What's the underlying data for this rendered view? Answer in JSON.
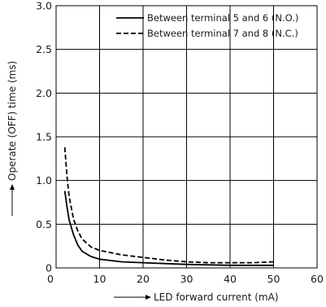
{
  "chart_data": {
    "type": "line",
    "xlabel": "LED forward current (mA)",
    "ylabel": "Operate (OFF) time (ms)",
    "xlim": [
      0,
      60
    ],
    "ylim": [
      0,
      3.0
    ],
    "x_ticks": [
      "10",
      "20",
      "30",
      "40",
      "50",
      "60"
    ],
    "x_origin_label": "0",
    "y_ticks": [
      "0",
      "0.5",
      "1.0",
      "1.5",
      "2.0",
      "2.5",
      "3.0"
    ],
    "grid": true,
    "legend_position": "top-right",
    "series": [
      {
        "name": "Between terminal 5 and 6 (N.O.)",
        "style": "solid",
        "color": "#000000",
        "x": [
          2,
          2.5,
          3,
          4,
          5,
          6,
          8,
          10,
          15,
          20,
          30,
          40,
          50
        ],
        "y": [
          0.88,
          0.7,
          0.55,
          0.38,
          0.26,
          0.19,
          0.13,
          0.1,
          0.07,
          0.06,
          0.04,
          0.03,
          0.03
        ]
      },
      {
        "name": "Between terminal 7 and 8 (N.C.)",
        "style": "dashed",
        "color": "#000000",
        "x": [
          2,
          2.5,
          3,
          4,
          5,
          6,
          8,
          10,
          15,
          20,
          25,
          30,
          35,
          40,
          45,
          50
        ],
        "y": [
          1.38,
          1.05,
          0.82,
          0.56,
          0.42,
          0.33,
          0.24,
          0.2,
          0.15,
          0.12,
          0.09,
          0.07,
          0.06,
          0.06,
          0.06,
          0.07
        ]
      }
    ]
  }
}
